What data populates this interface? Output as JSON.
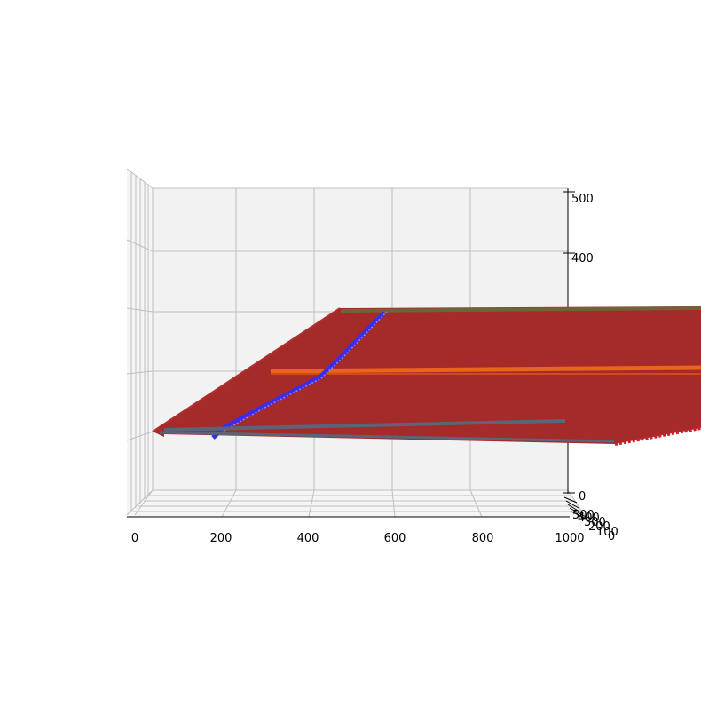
{
  "colors": {
    "pane_back": "#f2f2f2",
    "pane_side": "#f5f5f5",
    "grid": "#bfbfbf",
    "surface_main": "#a52a2a",
    "surface_edge": "#c8202a",
    "line_blue": "#3c2cf0",
    "line_orange": "#e8651a",
    "line_olive": "#6e6436",
    "line_slate": "#5c6478"
  },
  "chart_data": {
    "type": "surface3d",
    "title": "",
    "xlabel": "",
    "ylabel": "",
    "zlabel": "",
    "x_ticks": [
      "0",
      "200",
      "400",
      "600",
      "800",
      "1000"
    ],
    "y_ticks": [
      "0",
      "100",
      "200",
      "300",
      "400",
      "500"
    ],
    "z_ticks": [
      "0",
      "400",
      "500"
    ],
    "xlim": [
      0,
      1000
    ],
    "ylim": [
      0,
      500
    ],
    "zlim": [
      0,
      500
    ],
    "grid": true,
    "series": [
      {
        "type": "surface",
        "color": "#a52a2a"
      },
      {
        "type": "line",
        "color": "#3c2cf0"
      },
      {
        "type": "line",
        "color": "#e8651a"
      },
      {
        "type": "line",
        "color": "#6e6436"
      },
      {
        "type": "line",
        "color": "#5c6478"
      }
    ]
  }
}
